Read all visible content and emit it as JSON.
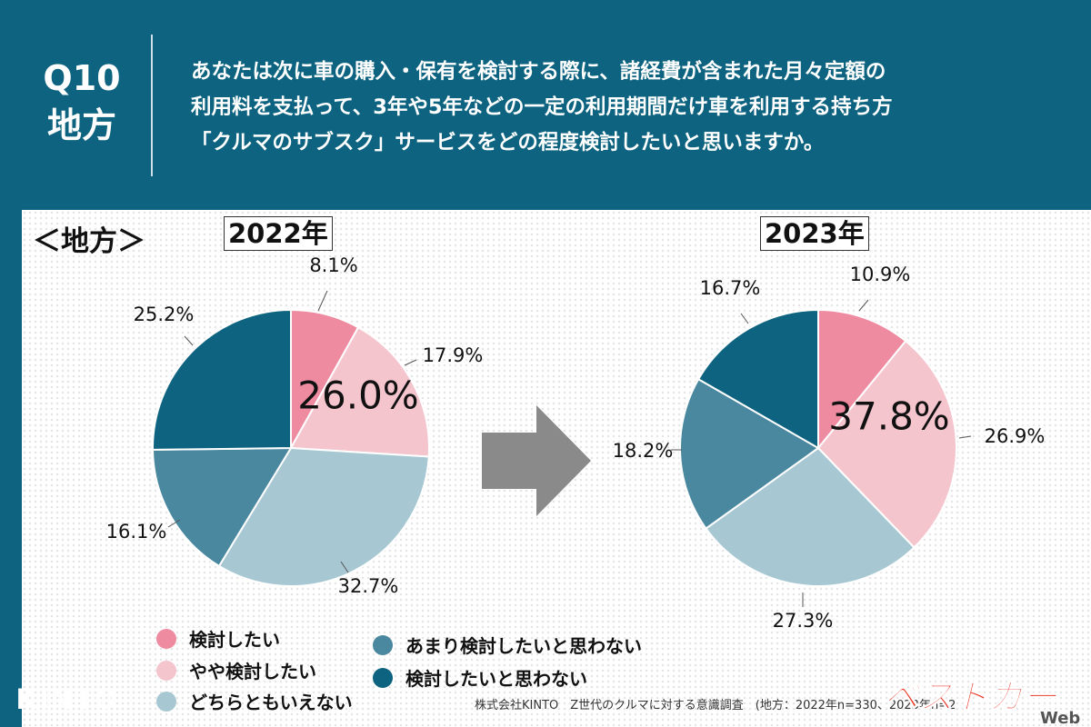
{
  "header": {
    "question_number": "Q10",
    "question_region": "地方",
    "question_lines": [
      "あなたは次に車の購入・保有を検討する際に、諸経費が含まれた月々定額の",
      "利用料を支払って、3年や5年などの一定の利用期間だけ車を利用する持ち方",
      "「クルマのサブスク」サービスをどの程度検討したいと思いますか。"
    ]
  },
  "region_label": "＜地方＞",
  "legend": [
    {
      "label": "検討したい",
      "color": "#ee8ba1"
    },
    {
      "label": "やや検討したい",
      "color": "#f5c5ce"
    },
    {
      "label": "どちらともいえない",
      "color": "#a7c8d3"
    },
    {
      "label": "あまり検討したいと思わない",
      "color": "#4a88a0"
    },
    {
      "label": "検討したいと思わない",
      "color": "#0e6480"
    }
  ],
  "chart_data": [
    {
      "type": "pie",
      "title": "2022年",
      "categories": [
        "検討したい",
        "やや検討したい",
        "どちらともいえない",
        "あまり検討したいと思わない",
        "検討したいと思わない"
      ],
      "values": [
        8.1,
        17.9,
        32.7,
        16.1,
        25.2
      ],
      "value_labels": [
        "8.1%",
        "17.9%",
        "32.7%",
        "16.1%",
        "25.2%"
      ],
      "center_label": "26.0%",
      "colors": [
        "#ee8ba1",
        "#f5c5ce",
        "#a7c8d3",
        "#4a88a0",
        "#0e6480"
      ]
    },
    {
      "type": "pie",
      "title": "2023年",
      "categories": [
        "検討したい",
        "やや検討したい",
        "どちらともいえない",
        "あまり検討したいと思わない",
        "検討したいと思わない"
      ],
      "values": [
        10.9,
        26.9,
        27.3,
        18.2,
        16.7
      ],
      "value_labels": [
        "10.9%",
        "26.9%",
        "27.3%",
        "18.2%",
        "16.7%"
      ],
      "center_label": "37.8%",
      "colors": [
        "#ee8ba1",
        "#f5c5ce",
        "#a7c8d3",
        "#4a88a0",
        "#0e6480"
      ]
    }
  ],
  "footer": {
    "logo_text": "KINTO",
    "source": "株式会社KINTO　Z世代のクルマに対する意識調査　(地方：2022年n=330、2023年n=2"
  },
  "watermark": {
    "text": "ベストカー",
    "suffix": "Web"
  }
}
